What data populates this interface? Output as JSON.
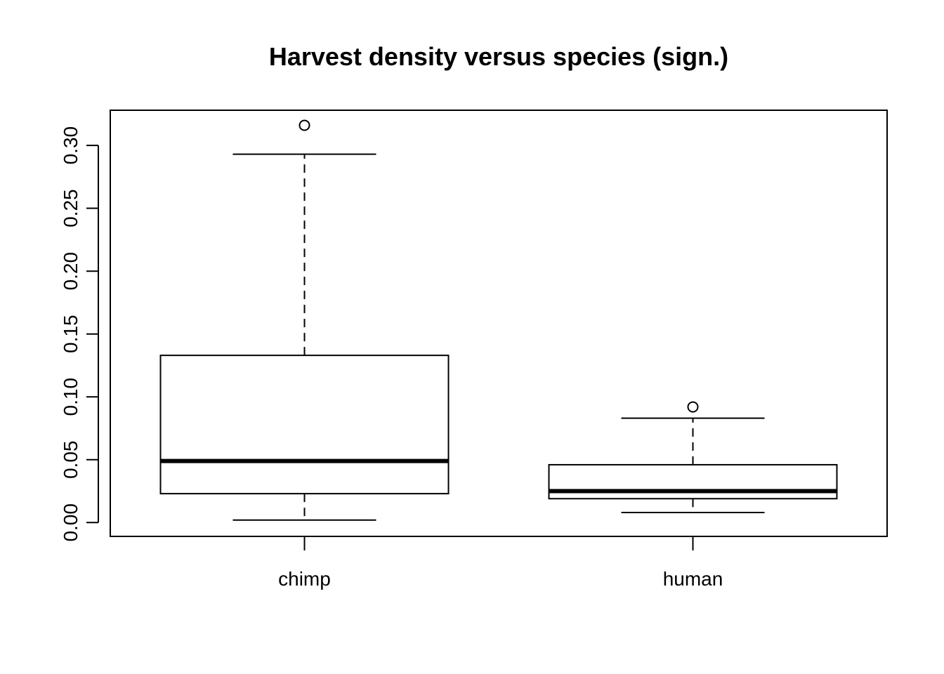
{
  "chart_data": {
    "type": "boxplot",
    "title": "Harvest density versus species (sign.)",
    "xlabel": "",
    "ylabel": "",
    "categories": [
      "chimp",
      "human"
    ],
    "ylim": [
      -0.011,
      0.328
    ],
    "yticks": [
      "0.00",
      "0.05",
      "0.10",
      "0.15",
      "0.20",
      "0.25",
      "0.30"
    ],
    "boxes": [
      {
        "category": "chimp",
        "whisker_low": 0.002,
        "q1": 0.023,
        "median": 0.049,
        "q3": 0.133,
        "whisker_high": 0.293,
        "outliers": [
          0.316
        ]
      },
      {
        "category": "human",
        "whisker_low": 0.008,
        "q1": 0.019,
        "median": 0.025,
        "q3": 0.046,
        "whisker_high": 0.083,
        "outliers": [
          0.092
        ]
      }
    ],
    "grid": false,
    "legend": "none",
    "colors": {
      "stroke": "#000000",
      "fill": "#ffffff"
    }
  }
}
